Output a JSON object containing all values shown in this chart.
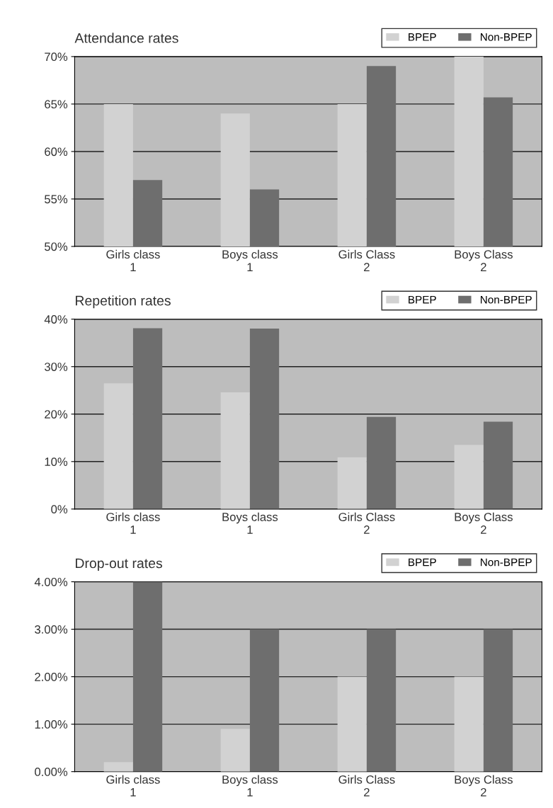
{
  "chart_data": [
    {
      "type": "bar",
      "title": "Attendance rates",
      "categories": [
        "Girls class\n1",
        "Boys class\n1",
        "Girls Class\n2",
        "Boys Class\n2"
      ],
      "series": [
        {
          "name": "BPEP",
          "color": "#d2d2d2",
          "values": [
            65,
            64,
            65,
            70
          ]
        },
        {
          "name": "Non-BPEP",
          "color": "#6e6e6e",
          "values": [
            57,
            56,
            69,
            65.7
          ]
        }
      ],
      "ylim": [
        50,
        70
      ],
      "yticks": [
        {
          "value": 50,
          "label": "50%"
        },
        {
          "value": 55,
          "label": "55%"
        },
        {
          "value": 60,
          "label": "60%"
        },
        {
          "value": 65,
          "label": "65%"
        },
        {
          "value": 70,
          "label": "70%"
        }
      ],
      "grid": "y",
      "legend": "top right"
    },
    {
      "type": "bar",
      "title": "Repetition rates",
      "categories": [
        "Girls class\n1",
        "Boys class\n1",
        "Girls Class\n2",
        "Boys Class\n2"
      ],
      "series": [
        {
          "name": "BPEP",
          "color": "#d2d2d2",
          "values": [
            26.5,
            24.6,
            10.9,
            13.5
          ]
        },
        {
          "name": "Non-BPEP",
          "color": "#6e6e6e",
          "values": [
            38.1,
            38,
            19.4,
            18.4
          ]
        }
      ],
      "ylim": [
        0,
        40
      ],
      "yticks": [
        {
          "value": 0,
          "label": "0%"
        },
        {
          "value": 10,
          "label": "10%"
        },
        {
          "value": 20,
          "label": "20%"
        },
        {
          "value": 30,
          "label": "30%"
        },
        {
          "value": 40,
          "label": "40%"
        }
      ],
      "grid": "y",
      "legend": "top right"
    },
    {
      "type": "bar",
      "title": "Drop-out rates",
      "categories": [
        "Girls class\n1",
        "Boys class\n1",
        "Girls Class\n2",
        "Boys Class\n2"
      ],
      "series": [
        {
          "name": "BPEP",
          "color": "#d2d2d2",
          "values": [
            0.2,
            0.9,
            2.0,
            2.0
          ]
        },
        {
          "name": "Non-BPEP",
          "color": "#6e6e6e",
          "values": [
            4.0,
            3.0,
            3.0,
            3.0
          ]
        }
      ],
      "ylim": [
        0,
        4
      ],
      "yticks": [
        {
          "value": 0,
          "label": "0.00%"
        },
        {
          "value": 1,
          "label": "1.00%"
        },
        {
          "value": 2,
          "label": "2.00%"
        },
        {
          "value": 3,
          "label": "3.00%"
        },
        {
          "value": 4,
          "label": "4.00%"
        }
      ],
      "grid": "y",
      "legend": "top right"
    }
  ]
}
